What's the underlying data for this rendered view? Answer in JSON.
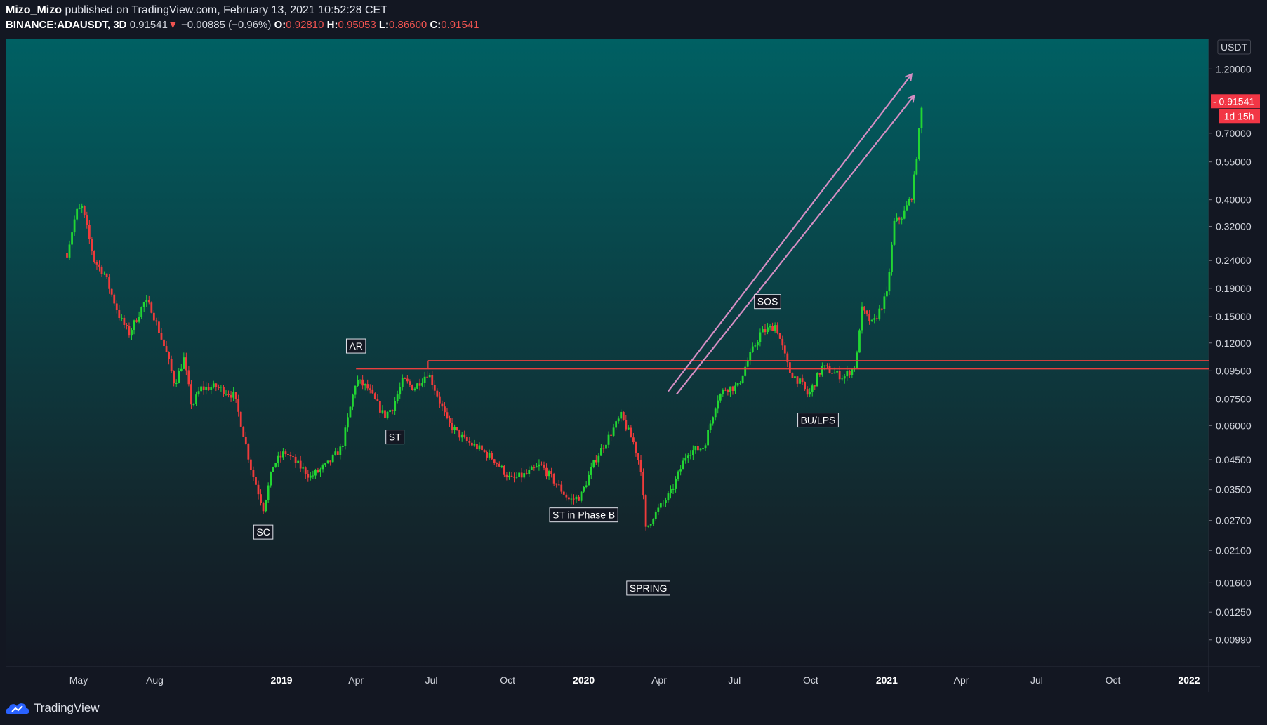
{
  "header": {
    "author": "Mizo_Mizo",
    "published_text": "published on TradingView.com, February 13, 2021 10:52:28 CET",
    "symbol": "BINANCE:ADAUSDT, 3D",
    "last_price": "0.91541",
    "change_arrow": "▼",
    "change": "−0.00885 (−0.96%)",
    "open_label": "O:",
    "open": "0.92810",
    "high_label": "H:",
    "high": "0.95053",
    "low_label": "L:",
    "low": "0.86600",
    "close_label": "C:",
    "close": "0.91541"
  },
  "footer": {
    "brand": "TradingView"
  },
  "colors": {
    "up": "#26a69a",
    "up_bright": "#22d633",
    "down": "#ef3b3b",
    "resistance_line": "#e8403f",
    "arrows": "#d48ec3",
    "price_badge": "#f23645",
    "bg_top": "#006063",
    "bg_bottom": "#131722"
  },
  "chart_data": {
    "type": "candlestick",
    "scale": "log",
    "currency": "USDT",
    "ylim": [
      0.0079,
      1.55
    ],
    "y_ticks": [
      "1.20000",
      "0.70000",
      "0.55000",
      "0.40000",
      "0.32000",
      "0.24000",
      "0.19000",
      "0.15000",
      "0.12000",
      "0.09500",
      "0.07500",
      "0.06000",
      "0.04500",
      "0.03500",
      "0.02700",
      "0.02100",
      "0.01600",
      "0.01250",
      "0.00990"
    ],
    "y_tick_values": [
      1.2,
      0.7,
      0.55,
      0.4,
      0.32,
      0.24,
      0.19,
      0.15,
      0.12,
      0.095,
      0.075,
      0.06,
      0.045,
      0.035,
      0.027,
      0.021,
      0.016,
      0.0125,
      0.0099
    ],
    "x_ticks": [
      {
        "label": "May",
        "date": "2018-05-01",
        "bold": false
      },
      {
        "label": "Aug",
        "date": "2018-08-01",
        "bold": false
      },
      {
        "label": "2019",
        "date": "2019-01-01",
        "bold": true
      },
      {
        "label": "Apr",
        "date": "2019-04-01",
        "bold": false
      },
      {
        "label": "Jul",
        "date": "2019-07-01",
        "bold": false
      },
      {
        "label": "Oct",
        "date": "2019-10-01",
        "bold": false
      },
      {
        "label": "2020",
        "date": "2020-01-01",
        "bold": true
      },
      {
        "label": "Apr",
        "date": "2020-04-01",
        "bold": false
      },
      {
        "label": "Jul",
        "date": "2020-07-01",
        "bold": false
      },
      {
        "label": "Oct",
        "date": "2020-10-01",
        "bold": false
      },
      {
        "label": "2021",
        "date": "2021-01-01",
        "bold": true
      },
      {
        "label": "Apr",
        "date": "2021-04-01",
        "bold": false
      },
      {
        "label": "Jul",
        "date": "2021-07-01",
        "bold": false
      },
      {
        "label": "Oct",
        "date": "2021-10-01",
        "bold": false
      },
      {
        "label": "2022",
        "date": "2022-01-01",
        "bold": true
      }
    ],
    "current_price_label": "0.91541",
    "current_price": 0.91541,
    "countdown_label": "1d 15h",
    "path_keypoints": [
      [
        "2018-04-17",
        0.255
      ],
      [
        "2018-04-28",
        0.36
      ],
      [
        "2018-05-05",
        0.375
      ],
      [
        "2018-05-20",
        0.24
      ],
      [
        "2018-06-01",
        0.215
      ],
      [
        "2018-06-20",
        0.148
      ],
      [
        "2018-07-01",
        0.13
      ],
      [
        "2018-07-20",
        0.17
      ],
      [
        "2018-07-28",
        0.16
      ],
      [
        "2018-08-15",
        0.11
      ],
      [
        "2018-08-25",
        0.085
      ],
      [
        "2018-09-05",
        0.105
      ],
      [
        "2018-09-15",
        0.07
      ],
      [
        "2018-09-25",
        0.082
      ],
      [
        "2018-10-15",
        0.083
      ],
      [
        "2018-11-05",
        0.077
      ],
      [
        "2018-11-15",
        0.058
      ],
      [
        "2018-11-25",
        0.042
      ],
      [
        "2018-12-10",
        0.03
      ],
      [
        "2018-12-22",
        0.043
      ],
      [
        "2019-01-05",
        0.048
      ],
      [
        "2019-02-05",
        0.039
      ],
      [
        "2019-02-25",
        0.043
      ],
      [
        "2019-03-15",
        0.05
      ],
      [
        "2019-04-01",
        0.088
      ],
      [
        "2019-04-15",
        0.082
      ],
      [
        "2019-05-05",
        0.065
      ],
      [
        "2019-05-15",
        0.07
      ],
      [
        "2019-05-28",
        0.088
      ],
      [
        "2019-06-10",
        0.082
      ],
      [
        "2019-06-27",
        0.094
      ],
      [
        "2019-07-10",
        0.075
      ],
      [
        "2019-07-20",
        0.062
      ],
      [
        "2019-08-10",
        0.053
      ],
      [
        "2019-08-25",
        0.05
      ],
      [
        "2019-09-15",
        0.045
      ],
      [
        "2019-10-05",
        0.038
      ],
      [
        "2019-10-25",
        0.04
      ],
      [
        "2019-11-10",
        0.043
      ],
      [
        "2019-11-25",
        0.038
      ],
      [
        "2019-12-15",
        0.032
      ],
      [
        "2019-12-28",
        0.033
      ],
      [
        "2020-01-15",
        0.045
      ],
      [
        "2020-02-15",
        0.065
      ],
      [
        "2020-03-01",
        0.052
      ],
      [
        "2020-03-10",
        0.042
      ],
      [
        "2020-03-16",
        0.025
      ],
      [
        "2020-03-25",
        0.028
      ],
      [
        "2020-04-15",
        0.034
      ],
      [
        "2020-05-05",
        0.048
      ],
      [
        "2020-05-25",
        0.05
      ],
      [
        "2020-06-10",
        0.075
      ],
      [
        "2020-06-20",
        0.082
      ],
      [
        "2020-07-05",
        0.083
      ],
      [
        "2020-07-15",
        0.1
      ],
      [
        "2020-08-01",
        0.13
      ],
      [
        "2020-08-20",
        0.14
      ],
      [
        "2020-09-05",
        0.095
      ],
      [
        "2020-09-20",
        0.085
      ],
      [
        "2020-09-28",
        0.077
      ],
      [
        "2020-10-15",
        0.098
      ],
      [
        "2020-11-10",
        0.09
      ],
      [
        "2020-11-25",
        0.1
      ],
      [
        "2020-12-01",
        0.16
      ],
      [
        "2020-12-15",
        0.14
      ],
      [
        "2021-01-01",
        0.18
      ],
      [
        "2021-01-10",
        0.33
      ],
      [
        "2021-01-20",
        0.35
      ],
      [
        "2021-02-01",
        0.42
      ],
      [
        "2021-02-13",
        0.915
      ]
    ],
    "annotations": [
      {
        "label": "SC",
        "date": "2018-12-10",
        "price": 0.0245
      },
      {
        "label": "AR",
        "date": "2019-04-01",
        "price": 0.117
      },
      {
        "label": "ST",
        "date": "2019-05-18",
        "price": 0.0545
      },
      {
        "label": "ST in Phase B",
        "date": "2020-01-01",
        "price": 0.0283
      },
      {
        "label": "SPRING",
        "date": "2020-03-19",
        "price": 0.0153
      },
      {
        "label": "SOS",
        "date": "2020-08-10",
        "price": 0.17
      },
      {
        "label": "BU/LPS",
        "date": "2020-10-10",
        "price": 0.0628
      }
    ],
    "resistance": {
      "from": "2019-04-01",
      "from_upper": "2019-06-27",
      "upper": 0.1035,
      "lower": 0.0965
    },
    "arrows": [
      {
        "from": [
          "2020-04-12",
          0.08
        ],
        "to": [
          "2021-01-31",
          1.15
        ]
      },
      {
        "from": [
          "2020-04-22",
          0.078
        ],
        "to": [
          "2021-02-03",
          0.96
        ]
      }
    ]
  }
}
